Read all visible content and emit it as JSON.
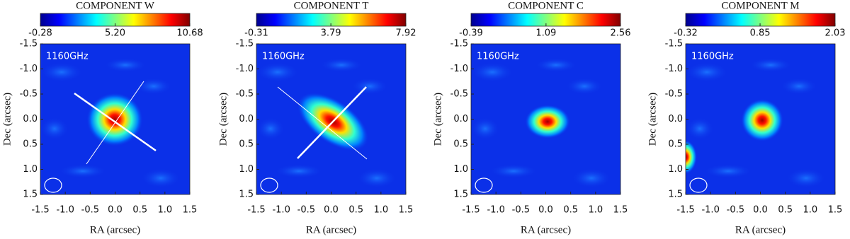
{
  "chart_data": [
    {
      "type": "heatmap",
      "title": "COMPONENT W",
      "annotation": "1160GHz",
      "xlabel": "RA (arcsec)",
      "ylabel": "Dec (arcsec)",
      "xlim": [
        -1.5,
        1.5
      ],
      "ylim": [
        1.5,
        -1.5
      ],
      "xticks": [
        -1.5,
        {
          "value": -1,
          "label": "-1.0"
        },
        -0.5,
        {
          "value": 0,
          "label": "0.0"
        },
        0.5,
        {
          "value": 1,
          "label": "1.0"
        },
        1.5
      ],
      "yticks": [
        -1.5,
        {
          "value": -1,
          "label": "-1.0"
        },
        -0.5,
        {
          "value": 0,
          "label": "0.0"
        },
        0.5,
        {
          "value": 1,
          "label": "1.0"
        },
        1.5
      ],
      "colormap": "jet",
      "clim": [
        -0.28,
        10.68
      ],
      "cticks": [
        -0.28,
        {
          "value": 5.2,
          "label": "5.20"
        },
        10.68
      ]
    },
    {
      "type": "heatmap",
      "title": "COMPONENT T",
      "annotation": "1160GHz",
      "xlabel": "RA (arcsec)",
      "ylabel": "Dec (arcsec)",
      "xlim": [
        -1.5,
        1.5
      ],
      "ylim": [
        1.5,
        -1.5
      ],
      "xticks": [
        -1.5,
        {
          "value": -1,
          "label": "-1.0"
        },
        -0.5,
        {
          "value": 0,
          "label": "0.0"
        },
        0.5,
        {
          "value": 1,
          "label": "1.0"
        },
        1.5
      ],
      "yticks": [
        -1.5,
        {
          "value": -1,
          "label": "-1.0"
        },
        -0.5,
        {
          "value": 0,
          "label": "0.0"
        },
        0.5,
        {
          "value": 1,
          "label": "1.0"
        },
        1.5
      ],
      "colormap": "jet",
      "clim": [
        -0.31,
        7.92
      ],
      "cticks": [
        -0.31,
        3.79,
        7.92
      ]
    },
    {
      "type": "heatmap",
      "title": "COMPONENT C",
      "annotation": "1160GHz",
      "xlabel": "RA (arcsec)",
      "ylabel": "Dec (arcsec)",
      "xlim": [
        -1.5,
        1.5
      ],
      "ylim": [
        1.5,
        -1.5
      ],
      "xticks": [
        -1.5,
        {
          "value": -1,
          "label": "-1.0"
        },
        -0.5,
        {
          "value": 0,
          "label": "0.0"
        },
        0.5,
        {
          "value": 1,
          "label": "1.0"
        },
        1.5
      ],
      "yticks": [
        -1.5,
        {
          "value": -1,
          "label": "-1.0"
        },
        -0.5,
        {
          "value": 0,
          "label": "0.0"
        },
        0.5,
        {
          "value": 1,
          "label": "1.0"
        },
        1.5
      ],
      "colormap": "jet",
      "clim": [
        -0.39,
        2.56
      ],
      "cticks": [
        -0.39,
        1.09,
        2.56
      ]
    },
    {
      "type": "heatmap",
      "title": "COMPONENT M",
      "annotation": "1160GHz",
      "xlabel": "RA (arcsec)",
      "ylabel": "Dec (arcsec)",
      "xlim": [
        -1.5,
        1.5
      ],
      "ylim": [
        1.5,
        -1.5
      ],
      "xticks": [
        -1.5,
        {
          "value": -1,
          "label": "-1.0"
        },
        -0.5,
        {
          "value": 0,
          "label": "0.0"
        },
        0.5,
        {
          "value": 1,
          "label": "1.0"
        },
        1.5
      ],
      "yticks": [
        -1.5,
        {
          "value": -1,
          "label": "-1.0"
        },
        -0.5,
        {
          "value": 0,
          "label": "0.0"
        },
        0.5,
        {
          "value": 1,
          "label": "1.0"
        },
        1.5
      ],
      "colormap": "jet",
      "clim": [
        -0.32,
        2.03
      ],
      "cticks": [
        -0.32,
        0.85,
        2.03
      ]
    }
  ]
}
